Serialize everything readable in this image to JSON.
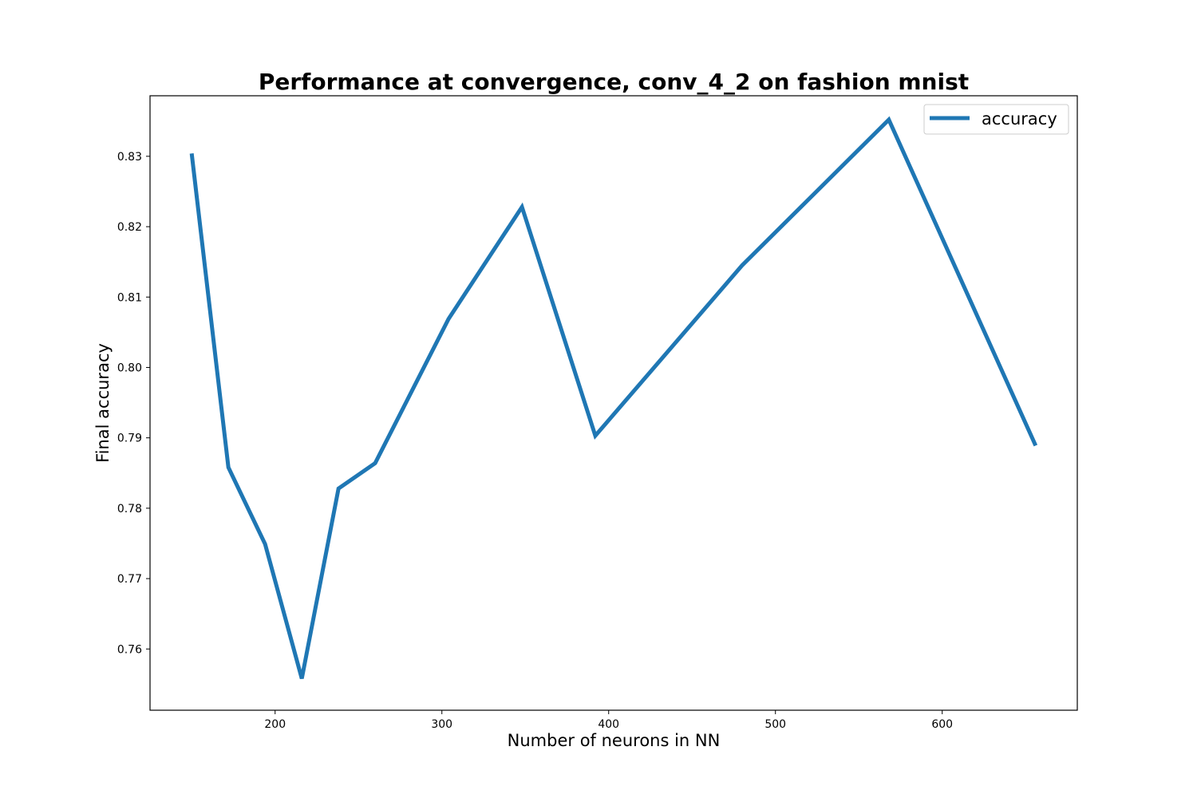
{
  "chart_data": {
    "type": "line",
    "title": "Performance at convergence, conv_4_2 on fashion mnist",
    "xlabel": "Number of neurons in NN",
    "ylabel": "Final accuracy",
    "xlim": [
      125,
      681
    ],
    "ylim": [
      0.7513,
      0.8386
    ],
    "xticks": [
      200,
      300,
      400,
      500,
      600
    ],
    "yticks": [
      0.76,
      0.77,
      0.78,
      0.79,
      0.8,
      0.81,
      0.82,
      0.83
    ],
    "ytick_labels": [
      "0.76",
      "0.77",
      "0.78",
      "0.79",
      "0.80",
      "0.81",
      "0.82",
      "0.83"
    ],
    "grid": false,
    "legend_position": "top-right",
    "series": [
      {
        "name": "accuracy",
        "color": "#1f77b4",
        "x": [
          150,
          172,
          194,
          216,
          238,
          260,
          304,
          348,
          392,
          480,
          568,
          656
        ],
        "y": [
          0.8304,
          0.7858,
          0.7749,
          0.7558,
          0.7828,
          0.7864,
          0.8069,
          0.8228,
          0.7903,
          0.8145,
          0.8352,
          0.7889
        ]
      }
    ]
  }
}
